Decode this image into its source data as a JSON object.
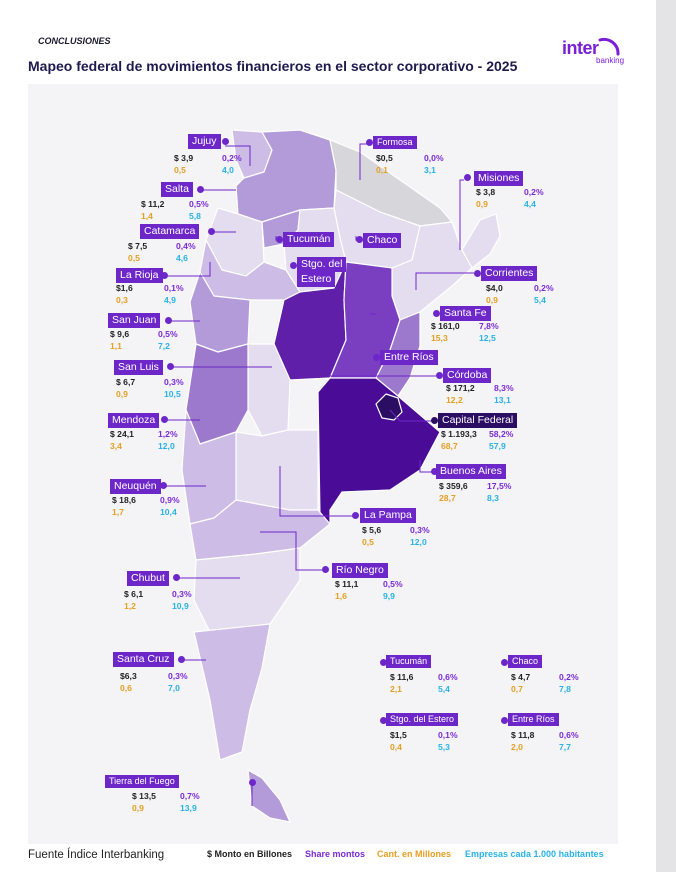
{
  "header": {
    "section": "CONCLUSIONES",
    "title": "Mapeo federal de movimientos financieros en el sector corporativo - 2025",
    "logo_main": "inter",
    "logo_sub": "banking"
  },
  "colors": {
    "lightest": "#e4dcef",
    "light": "#cdbce6",
    "mid": "#b39bda",
    "medium": "#9c79cc",
    "strong": "#7a3fc0",
    "dark": "#5f1fa8",
    "darker": "#4a0b96",
    "darkest": "#2b0d63",
    "gray": "#d7d7db",
    "label_purple": "#6d27c9",
    "label_dark": "#2b0d63"
  },
  "provinces": [
    {
      "key": "jujuy",
      "name": "Jujuy",
      "monto": "$ 3,9",
      "share": "0,2%",
      "cant": "0,5",
      "empresas": "4,0"
    },
    {
      "key": "formosa",
      "name": "Formosa",
      "monto": "$0,5",
      "share": "0,0%",
      "cant": "0,1",
      "empresas": "3,1"
    },
    {
      "key": "misiones",
      "name": "Misiones",
      "monto": "$ 3,8",
      "share": "0,2%",
      "cant": "0,9",
      "empresas": "4,4"
    },
    {
      "key": "salta",
      "name": "Salta",
      "monto": "$ 11,2",
      "share": "0,5%",
      "cant": "1,4",
      "empresas": "5,8"
    },
    {
      "key": "catamarca",
      "name": "Catamarca",
      "monto": "$ 7,5",
      "share": "0,4%",
      "cant": "0,5",
      "empresas": "4,6"
    },
    {
      "key": "larioja",
      "name": "La Rioja",
      "monto": "$1,6",
      "share": "0,1%",
      "cant": "0,3",
      "empresas": "4,9"
    },
    {
      "key": "corrientes",
      "name": "Corrientes",
      "monto": "$4,0",
      "share": "0,2%",
      "cant": "0,9",
      "empresas": "5,4"
    },
    {
      "key": "sanjuan",
      "name": "San Juan",
      "monto": "$ 9,6",
      "share": "0,5%",
      "cant": "1,1",
      "empresas": "7,2"
    },
    {
      "key": "santafe",
      "name": "Santa Fe",
      "monto": "$ 161,0",
      "share": "7,8%",
      "cant": "15,3",
      "empresas": "12,5"
    },
    {
      "key": "sanluis",
      "name": "San Luis",
      "monto": "$ 6,7",
      "share": "0,3%",
      "cant": "0,9",
      "empresas": "10,5"
    },
    {
      "key": "cordoba",
      "name": "Córdoba",
      "monto": "$ 171,2",
      "share": "8,3%",
      "cant": "12,2",
      "empresas": "13,1"
    },
    {
      "key": "mendoza",
      "name": "Mendoza",
      "monto": "$ 24,1",
      "share": "1,2%",
      "cant": "3,4",
      "empresas": "12,0"
    },
    {
      "key": "capital",
      "name": "Capital Federal",
      "monto": "$ 1.193,3",
      "share": "58,2%",
      "cant": "68,7",
      "empresas": "57,9"
    },
    {
      "key": "buenosaires",
      "name": "Buenos Aires",
      "monto": "$ 359,6",
      "share": "17,5%",
      "cant": "28,7",
      "empresas": "8,3"
    },
    {
      "key": "neuquen",
      "name": "Neuquén",
      "monto": "$ 18,6",
      "share": "0,9%",
      "cant": "1,7",
      "empresas": "10,4"
    },
    {
      "key": "lapampa",
      "name": "La Pampa",
      "monto": "$ 5,6",
      "share": "0,3%",
      "cant": "0,5",
      "empresas": "12,0"
    },
    {
      "key": "rionegro",
      "name": "Río Negro",
      "monto": "$ 11,1",
      "share": "0,5%",
      "cant": "1,6",
      "empresas": "9,9"
    },
    {
      "key": "chubut",
      "name": "Chubut",
      "monto": "$ 6,1",
      "share": "0,3%",
      "cant": "1,2",
      "empresas": "10,9"
    },
    {
      "key": "santacruz",
      "name": "Santa Cruz",
      "monto": "$6,3",
      "share": "0,3%",
      "cant": "0,6",
      "empresas": "7,0"
    },
    {
      "key": "tierradelfuego",
      "name": "Tierra del Fuego",
      "monto": "$ 13,5",
      "share": "0,7%",
      "cant": "0,9",
      "empresas": "13,9"
    },
    {
      "key": "tucuman",
      "name": "Tucumán",
      "monto": "$ 11,6",
      "share": "0,6%",
      "cant": "2,1",
      "empresas": "5,4"
    },
    {
      "key": "chaco",
      "name": "Chaco",
      "monto": "$ 4,7",
      "share": "0,2%",
      "cant": "0,7",
      "empresas": "7,8"
    },
    {
      "key": "santiago",
      "name": "Stgo. del Estero",
      "monto": "$1,5",
      "share": "0,1%",
      "cant": "0,4",
      "empresas": "5,3"
    },
    {
      "key": "entrerios",
      "name": "Entre Ríos",
      "monto": "$ 11,8",
      "share": "0,6%",
      "cant": "2,0",
      "empresas": "7,7"
    }
  ],
  "map_labels": {
    "tucuman": "Tucumán",
    "chaco": "Chaco",
    "santiago_l1": "Stgo. del",
    "santiago_l2": "Estero",
    "entrerios": "Entre Ríos"
  },
  "footer": {
    "source": "Fuente Índice Interbanking",
    "legend_monto": "$ Monto en Billones",
    "legend_share": "Share montos",
    "legend_cant": "Cant. en Millones",
    "legend_empresas": "Empresas cada 1.000 habitantes"
  }
}
